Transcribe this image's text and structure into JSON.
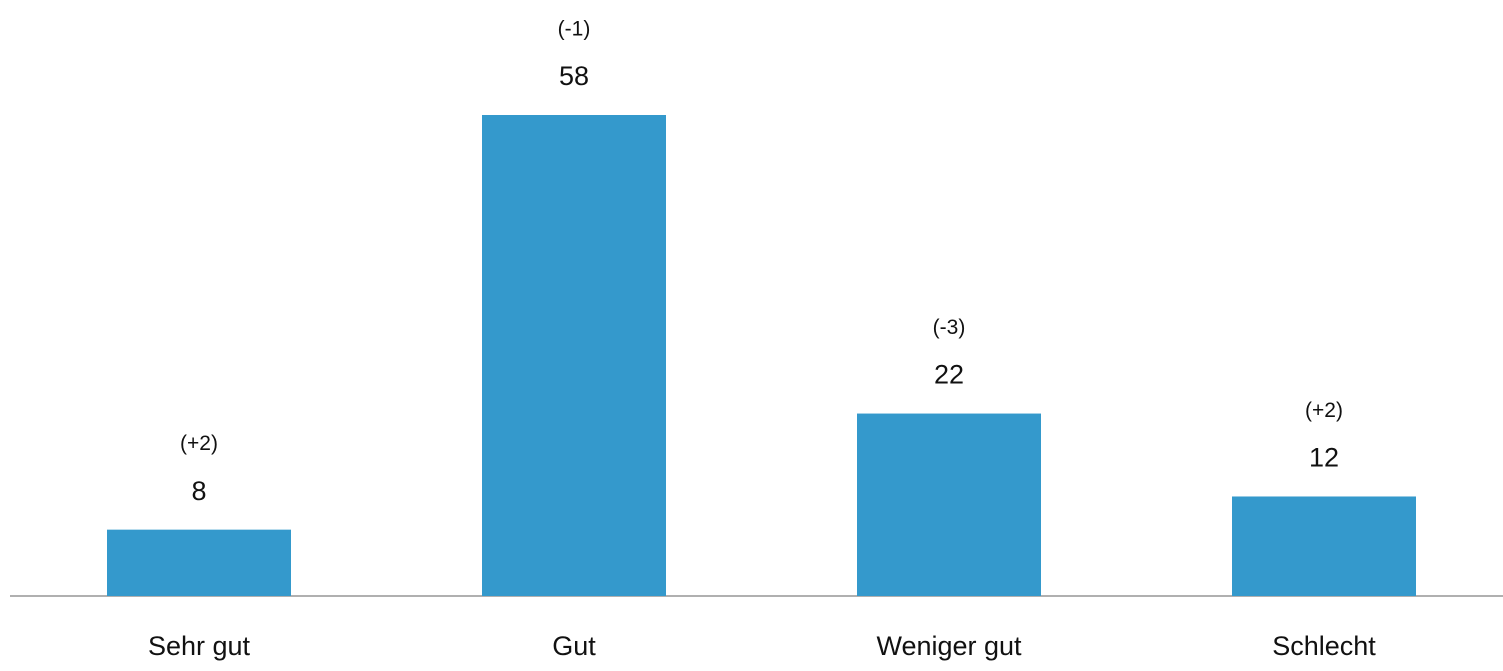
{
  "chart_data": {
    "type": "bar",
    "categories": [
      "Sehr gut",
      "Gut",
      "Weniger gut",
      "Schlecht"
    ],
    "values": [
      8,
      58,
      22,
      12
    ],
    "annotations": [
      "(+2)",
      "(-1)",
      "(-3)",
      "(+2)"
    ],
    "color": "#3499cc"
  }
}
